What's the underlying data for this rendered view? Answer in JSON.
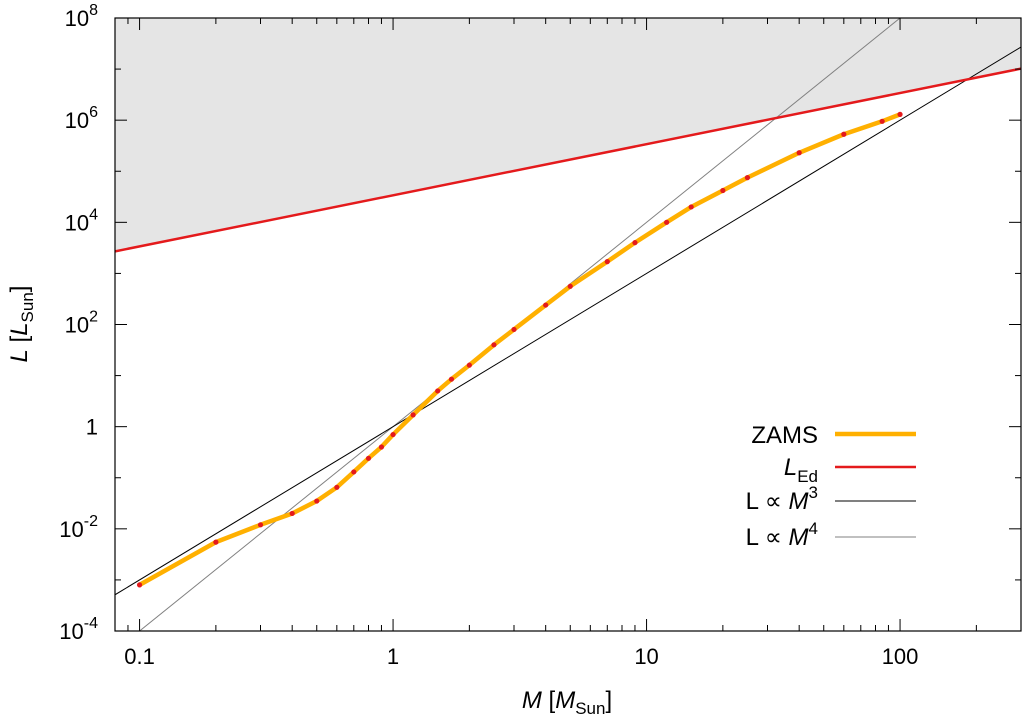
{
  "chart_data": {
    "type": "line",
    "xscale": "log",
    "yscale": "log",
    "xlim": [
      0.08,
      300
    ],
    "ylim": [
      0.0001,
      100000000
    ],
    "grid": false,
    "legend_position": "bottom-right",
    "x_axis": {
      "label_var": "M",
      "label_unit_open": " [",
      "label_unit_var": "M",
      "label_unit_sub": "Sun",
      "label_unit_close": "]",
      "ticks": [
        {
          "value": 0.1,
          "label": "0.1"
        },
        {
          "value": 1,
          "label": "1"
        },
        {
          "value": 10,
          "label": "10"
        },
        {
          "value": 100,
          "label": "100"
        }
      ]
    },
    "y_axis": {
      "label_var": "L",
      "label_unit_open": " [",
      "label_unit_var": "L",
      "label_unit_sub": "Sun",
      "label_unit_close": "]",
      "ticks": [
        {
          "value": 0.0001,
          "base": "10",
          "exp": "-4"
        },
        {
          "value": 0.01,
          "base": "10",
          "exp": "-2"
        },
        {
          "value": 1,
          "base": "1",
          "exp": ""
        },
        {
          "value": 100,
          "base": "10",
          "exp": "2"
        },
        {
          "value": 10000,
          "base": "10",
          "exp": "4"
        },
        {
          "value": 1000000,
          "base": "10",
          "exp": "6"
        },
        {
          "value": 100000000,
          "base": "10",
          "exp": "8"
        }
      ]
    },
    "shaded_region": {
      "description_color": "#e5e5e5",
      "bounded_below_by": "L_Ed"
    },
    "series": [
      {
        "key": "zams",
        "legend_text": "ZAMS",
        "color": "#ffb000",
        "marker_color": "#e41a1c",
        "x": [
          0.1,
          0.2,
          0.3,
          0.4,
          0.5,
          0.6,
          0.7,
          0.8,
          0.9,
          1.0,
          1.2,
          1.5,
          1.7,
          2.0,
          2.5,
          3.0,
          4.0,
          5.0,
          7.0,
          9.0,
          12.0,
          15.0,
          20.0,
          25.0,
          40.0,
          60.0,
          85.0,
          100.0
        ],
        "y": [
          0.0008,
          0.0055,
          0.012,
          0.02,
          0.035,
          0.065,
          0.13,
          0.24,
          0.4,
          0.7,
          1.7,
          5,
          8.5,
          16,
          40,
          80,
          240,
          560,
          1700,
          4000,
          10000,
          20000,
          42000,
          75000,
          230000,
          530000,
          950000,
          1300000
        ]
      },
      {
        "key": "ledd",
        "legend_var": "L",
        "legend_sub": "Ed",
        "color": "#e41a1c",
        "x": [
          0.08,
          300
        ],
        "y": [
          2700,
          10200000
        ]
      },
      {
        "key": "m3",
        "legend_prefix": "L ∝ ",
        "legend_var": "M",
        "legend_exp": "3",
        "color": "#000000",
        "x": [
          0.08,
          300
        ],
        "y": [
          0.000512,
          27000000
        ]
      },
      {
        "key": "m4",
        "legend_prefix": "L ∝ ",
        "legend_var": "M",
        "legend_exp": "4",
        "color": "#808080",
        "x": [
          0.09,
          300
        ],
        "y": [
          6.56e-05,
          8100000000
        ]
      }
    ]
  }
}
